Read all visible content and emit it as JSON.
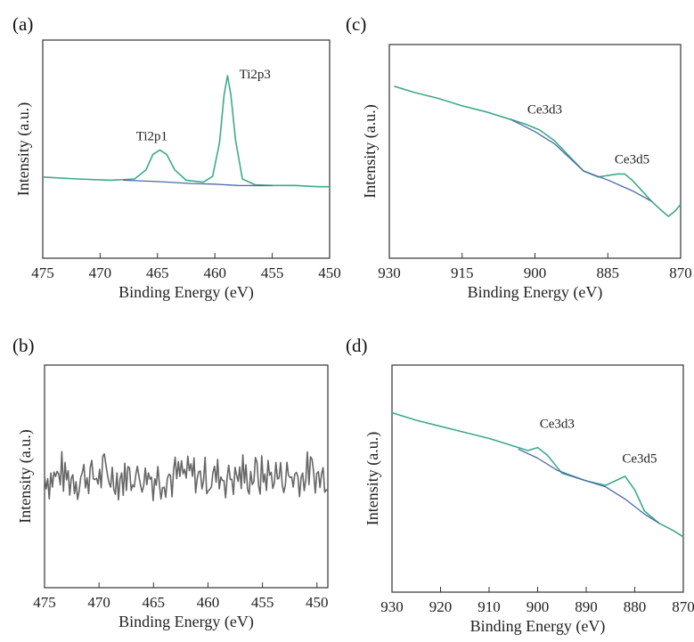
{
  "chart_data": [
    {
      "panel": "(a)",
      "type": "line",
      "xlabel": "Binding Energy (eV)",
      "ylabel": "Intensity (a.u.)",
      "xlim": [
        475,
        450
      ],
      "x_reversed": true,
      "xticks": [
        475,
        470,
        465,
        460,
        455,
        450
      ],
      "ylim": [
        0,
        1
      ],
      "y_tick_labels_shown": false,
      "colors": {
        "fit": "#3daa8a",
        "background": "#4a6aa8"
      },
      "series": [
        {
          "role": "measured",
          "x": [
            475,
            472,
            469,
            467,
            466,
            465.4,
            464.8,
            464.2,
            463.5,
            462.5,
            461,
            460.2,
            459.6,
            459.2,
            458.9,
            458.6,
            458.2,
            457.6,
            456.5,
            455,
            453,
            451,
            450
          ],
          "y": [
            0.215,
            0.2,
            0.19,
            0.2,
            0.27,
            0.39,
            0.425,
            0.39,
            0.27,
            0.19,
            0.175,
            0.22,
            0.48,
            0.85,
            1.0,
            0.85,
            0.5,
            0.2,
            0.155,
            0.15,
            0.15,
            0.14,
            0.14
          ]
        },
        {
          "role": "background",
          "x": [
            468,
            465,
            462,
            460,
            458,
            456,
            455
          ],
          "y": [
            0.19,
            0.18,
            0.165,
            0.16,
            0.15,
            0.148,
            0.148
          ]
        }
      ],
      "annotations": [
        {
          "text": "Ti2p1",
          "x": 465.5,
          "y": 0.5
        },
        {
          "text": "Ti2p3",
          "x": 456.5,
          "y": 0.98
        }
      ]
    },
    {
      "panel": "(b)",
      "type": "line",
      "xlabel": "Binding Energy (eV)",
      "ylabel": "Intensity (a.u.)",
      "xlim": [
        475,
        449
      ],
      "x_reversed": true,
      "xticks": [
        475,
        470,
        465,
        460,
        455,
        450
      ],
      "ylim": [
        0,
        1
      ],
      "y_tick_labels_shown": false,
      "colors": {
        "measured": "#666666"
      },
      "series": [
        {
          "role": "measured",
          "description": "noisy flat signal",
          "x_start": 475,
          "x_end": 449,
          "mean": 0.5,
          "noise_amplitude": 0.1
        }
      ]
    },
    {
      "panel": "(c)",
      "type": "line",
      "xlabel": "Binding Energy (eV)",
      "ylabel": "Intensity (a.u.)",
      "xlim": [
        930,
        870
      ],
      "x_reversed": true,
      "xticks": [
        930,
        915,
        900,
        885,
        870
      ],
      "ylim": [
        0,
        1
      ],
      "y_tick_labels_shown": false,
      "colors": {
        "fit": "#3daa8a",
        "background": "#4a6aa8"
      },
      "series": [
        {
          "role": "measured",
          "x": [
            929,
            925,
            920,
            915,
            910,
            905,
            902,
            899,
            896,
            893,
            890,
            887,
            885,
            883,
            881.5,
            880,
            878,
            876,
            874,
            872.5,
            871,
            870
          ],
          "y": [
            0.96,
            0.92,
            0.88,
            0.83,
            0.79,
            0.74,
            0.71,
            0.67,
            0.6,
            0.5,
            0.4,
            0.36,
            0.37,
            0.38,
            0.38,
            0.34,
            0.27,
            0.2,
            0.14,
            0.1,
            0.14,
            0.18
          ]
        },
        {
          "role": "background",
          "x": [
            905,
            900,
            896,
            890,
            885,
            880,
            876
          ],
          "y": [
            0.74,
            0.66,
            0.58,
            0.4,
            0.34,
            0.27,
            0.2
          ]
        }
      ],
      "annotations": [
        {
          "text": "Ce3d3",
          "x": 898,
          "y": 0.78
        },
        {
          "text": "Ce3d5",
          "x": 880,
          "y": 0.45
        }
      ]
    },
    {
      "panel": "(d)",
      "type": "line",
      "xlabel": "Binding Energy (eV)",
      "ylabel": "Intensity (a.u.)",
      "xlim": [
        930,
        870
      ],
      "x_reversed": true,
      "xticks": [
        930,
        920,
        910,
        900,
        890,
        880,
        870
      ],
      "ylim": [
        0,
        1
      ],
      "y_tick_labels_shown": false,
      "colors": {
        "fit": "#3daa8a",
        "background": "#4a6aa8"
      },
      "series": [
        {
          "role": "measured",
          "x": [
            930,
            925,
            920,
            915,
            910,
            905,
            902,
            900,
            898,
            895,
            890,
            886,
            884,
            882,
            880,
            878,
            875,
            872,
            870
          ],
          "y": [
            0.95,
            0.9,
            0.86,
            0.82,
            0.78,
            0.73,
            0.7,
            0.72,
            0.67,
            0.55,
            0.5,
            0.47,
            0.5,
            0.53,
            0.44,
            0.3,
            0.22,
            0.17,
            0.13
          ]
        },
        {
          "role": "background",
          "x": [
            904,
            900,
            896,
            890,
            886,
            882,
            878,
            875
          ],
          "y": [
            0.71,
            0.65,
            0.57,
            0.5,
            0.46,
            0.38,
            0.28,
            0.22
          ]
        }
      ],
      "annotations": [
        {
          "text": "Ce3d3",
          "x": 896,
          "y": 0.85
        },
        {
          "text": "Ce3d5",
          "x": 879,
          "y": 0.62
        }
      ]
    }
  ]
}
